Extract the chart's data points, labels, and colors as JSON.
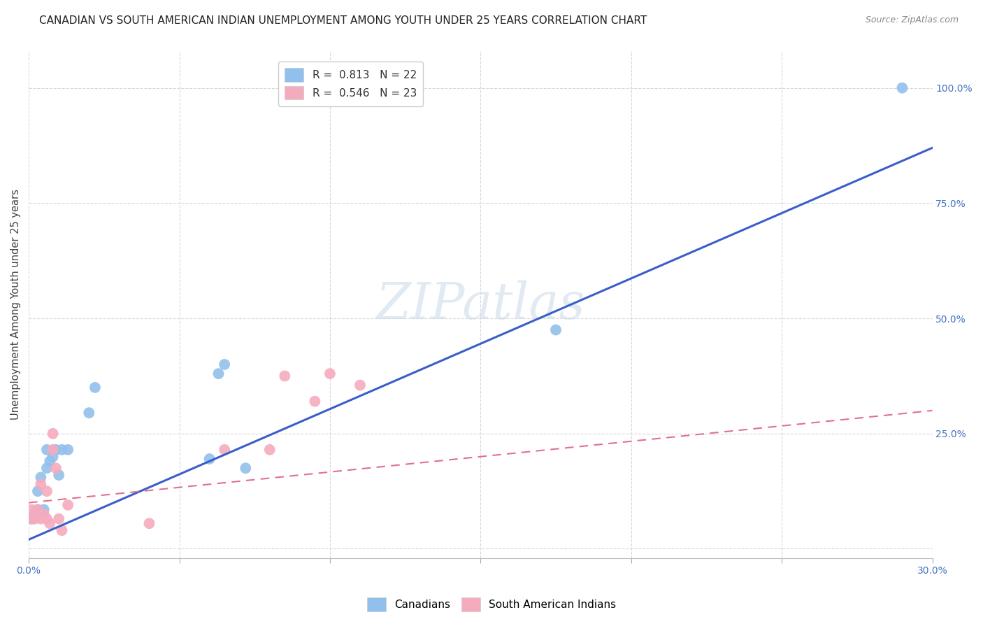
{
  "title": "CANADIAN VS SOUTH AMERICAN INDIAN UNEMPLOYMENT AMONG YOUTH UNDER 25 YEARS CORRELATION CHART",
  "source": "Source: ZipAtlas.com",
  "ylabel": "Unemployment Among Youth under 25 years",
  "xlim": [
    0.0,
    0.3
  ],
  "ylim": [
    -0.02,
    1.08
  ],
  "xticks": [
    0.0,
    0.05,
    0.1,
    0.15,
    0.2,
    0.25,
    0.3
  ],
  "xticklabels": [
    "0.0%",
    "",
    "",
    "",
    "",
    "",
    "30.0%"
  ],
  "yticks": [
    0.0,
    0.25,
    0.5,
    0.75,
    1.0
  ],
  "yticklabels": [
    "",
    "25.0%",
    "50.0%",
    "75.0%",
    "100.0%"
  ],
  "background_color": "#ffffff",
  "grid_color": "#d8d8d8",
  "watermark_text": "ZIPatlas",
  "canadians_color": "#92C0EC",
  "south_american_color": "#F5ABBE",
  "canadian_line_color": "#3A5FC8",
  "south_american_line_color": "#E07090",
  "canadian_R": "0.813",
  "canadian_N": "22",
  "south_american_R": "0.546",
  "south_american_N": "23",
  "canadians_x": [
    0.001,
    0.002,
    0.003,
    0.003,
    0.004,
    0.005,
    0.006,
    0.006,
    0.007,
    0.008,
    0.009,
    0.01,
    0.011,
    0.013,
    0.02,
    0.022,
    0.06,
    0.063,
    0.065,
    0.072,
    0.175,
    0.29
  ],
  "canadians_y": [
    0.065,
    0.075,
    0.085,
    0.125,
    0.155,
    0.085,
    0.175,
    0.215,
    0.19,
    0.2,
    0.215,
    0.16,
    0.215,
    0.215,
    0.295,
    0.35,
    0.195,
    0.38,
    0.4,
    0.175,
    0.475,
    1.0
  ],
  "south_american_x": [
    0.001,
    0.001,
    0.002,
    0.003,
    0.004,
    0.004,
    0.005,
    0.006,
    0.006,
    0.007,
    0.008,
    0.008,
    0.009,
    0.01,
    0.011,
    0.013,
    0.04,
    0.065,
    0.08,
    0.085,
    0.095,
    0.1,
    0.11
  ],
  "south_american_y": [
    0.065,
    0.085,
    0.065,
    0.085,
    0.14,
    0.065,
    0.075,
    0.125,
    0.065,
    0.055,
    0.215,
    0.25,
    0.175,
    0.065,
    0.04,
    0.095,
    0.055,
    0.215,
    0.215,
    0.375,
    0.32,
    0.38,
    0.355
  ],
  "canadian_line_x0": 0.0,
  "canadian_line_x1": 0.3,
  "canadian_line_y0": 0.02,
  "canadian_line_y1": 0.87,
  "south_american_line_x0": 0.0,
  "south_american_line_x1": 0.3,
  "south_american_line_y0": 0.1,
  "south_american_line_y1": 0.3,
  "marker_size": 130,
  "title_fontsize": 11,
  "axis_label_fontsize": 10.5,
  "tick_fontsize": 10,
  "legend_fontsize": 11,
  "source_fontsize": 9,
  "tick_color": "#4472C4"
}
